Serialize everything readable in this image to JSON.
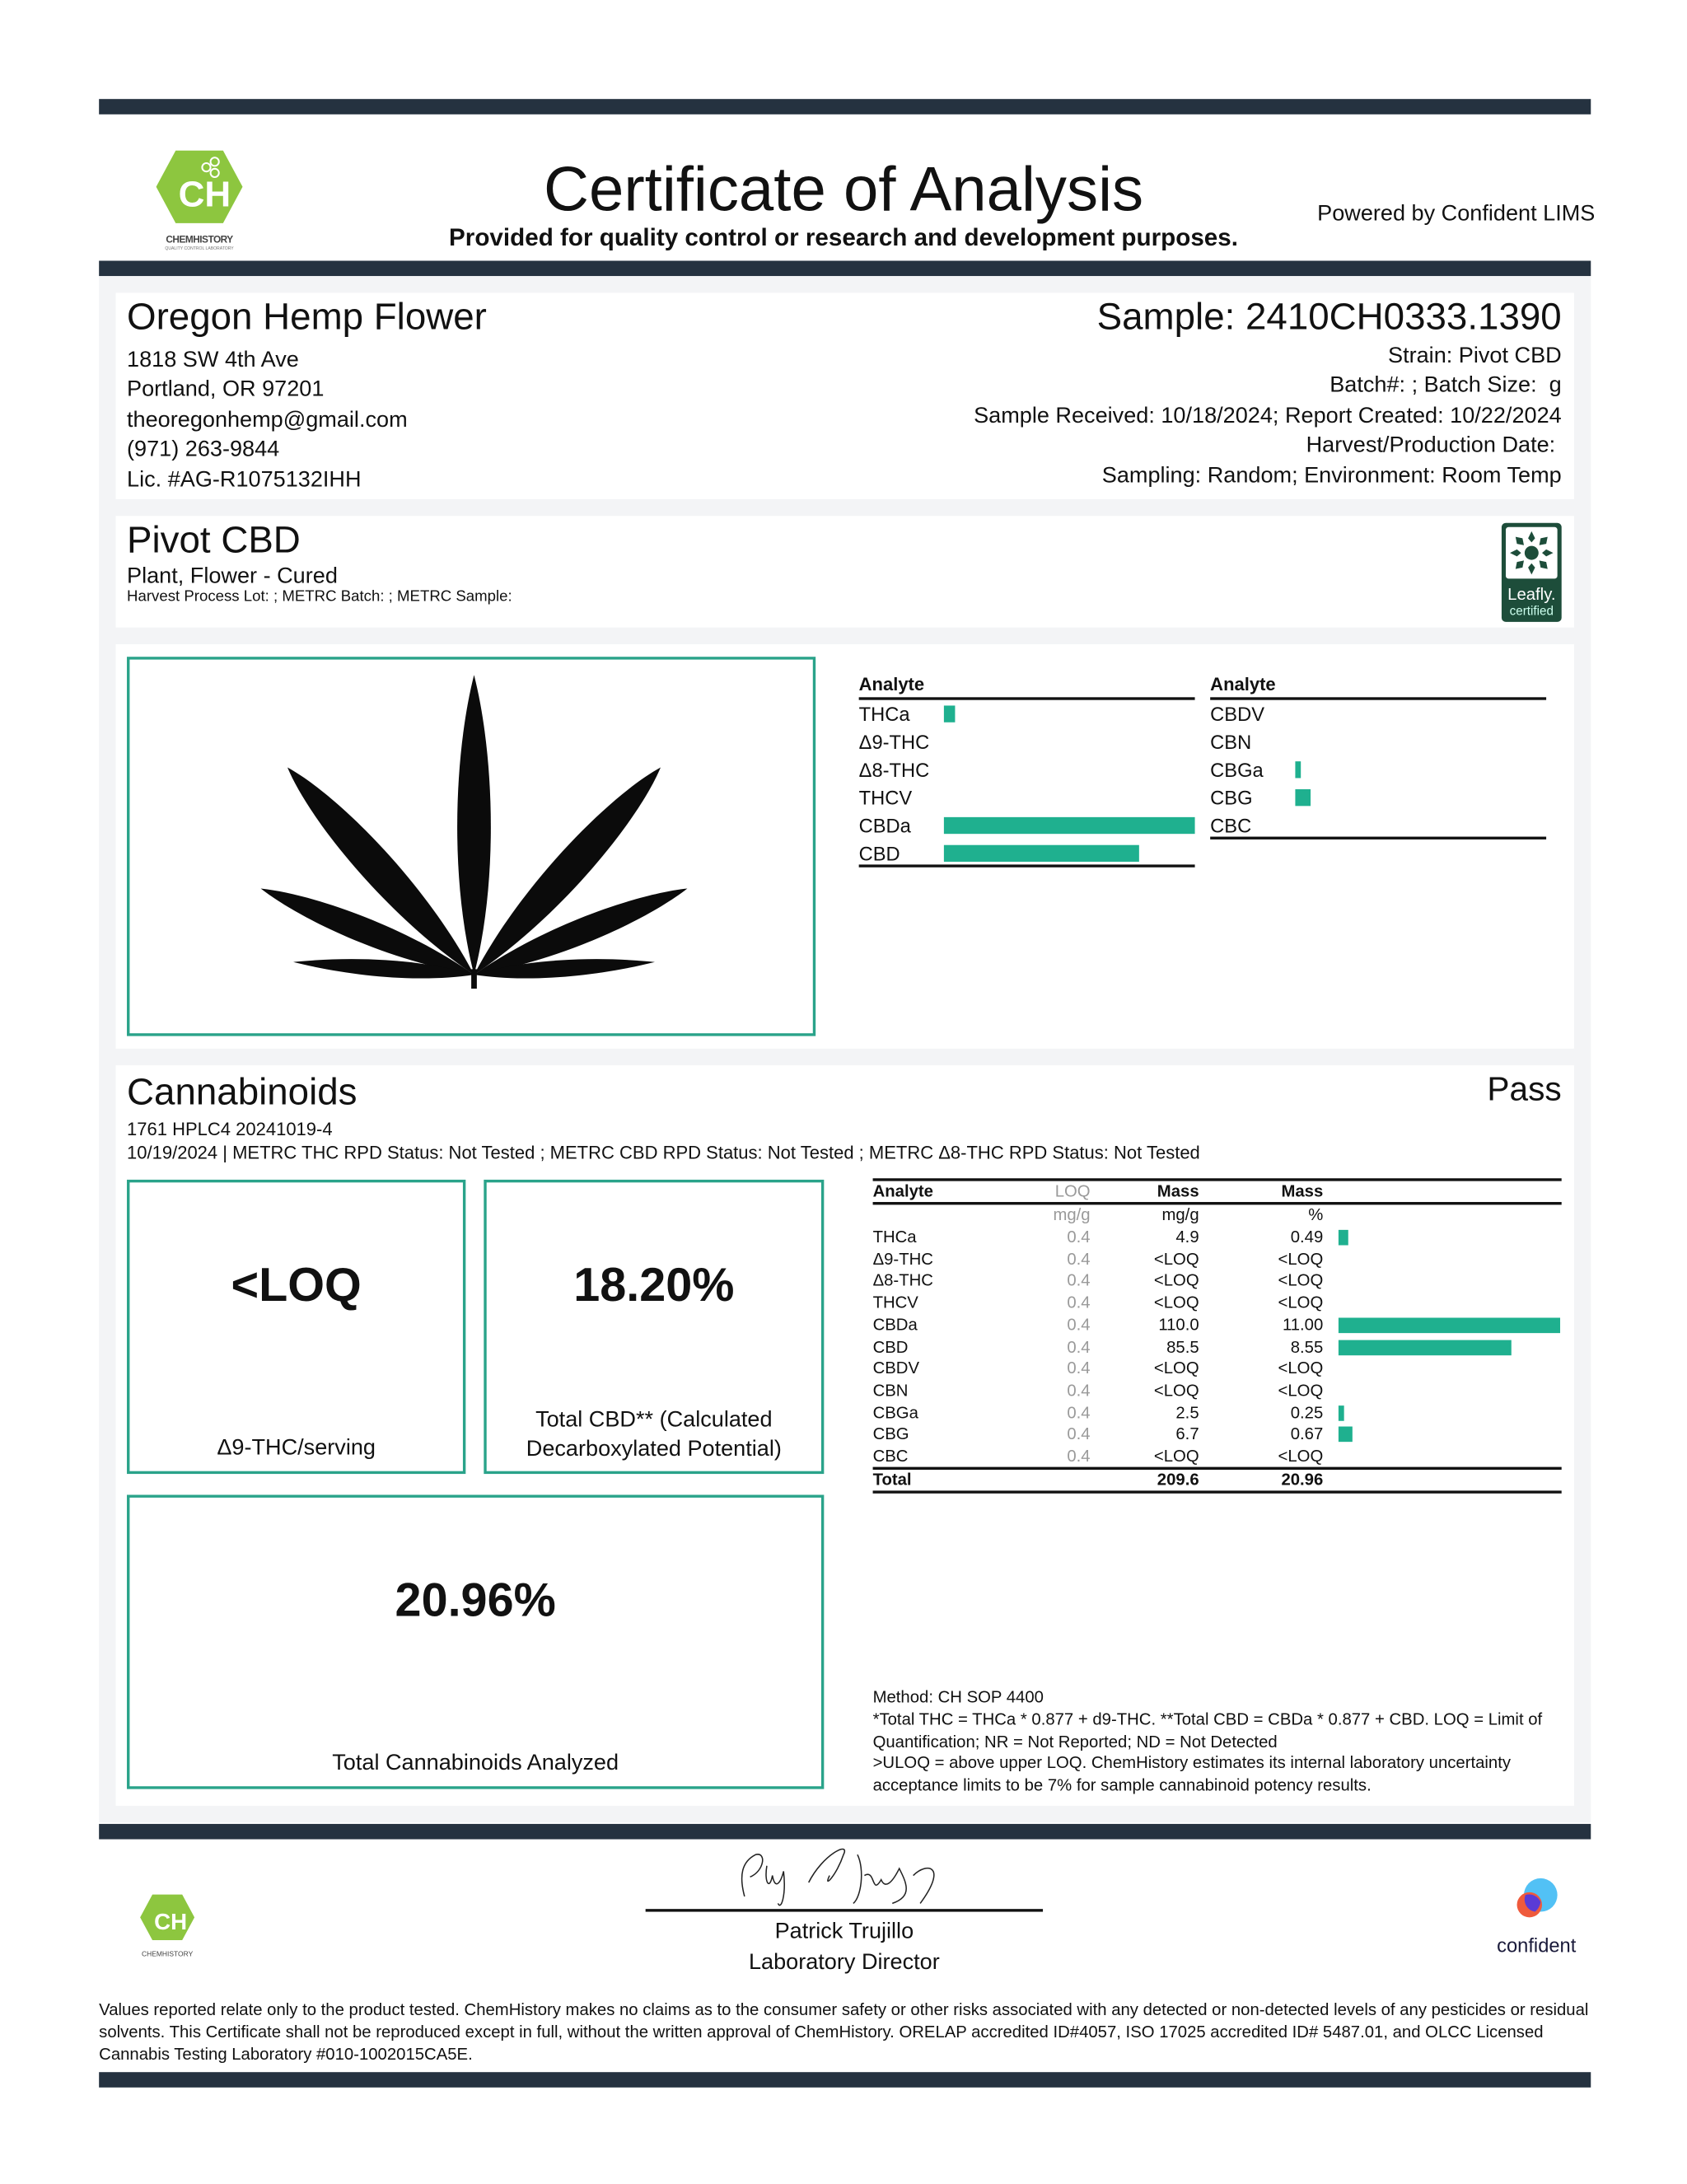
{
  "header": {
    "title": "Certificate of Analysis",
    "subtitle": "Provided for quality control or research and development purposes.",
    "powered_by": "Powered by Confident LIMS",
    "logo_text": "CHEMHISTORY",
    "logo_tagline": "QUALITY CONTROL LABORATORY",
    "logo_letters": "CH"
  },
  "client": {
    "name": "Oregon Hemp Flower",
    "address1": "1818 SW 4th Ave",
    "address2": "Portland, OR 97201",
    "email": "theoregonhemp@gmail.com",
    "phone": "(971) 263-9844",
    "license": "Lic. #AG-R1075132IHH"
  },
  "sample": {
    "id": "Sample: 2410CH0333.1390",
    "strain": "Strain: Pivot CBD",
    "batch": "Batch#: ; Batch Size:  g",
    "dates": "Sample Received: 10/18/2024; Report Created: 10/22/2024",
    "harvest": "Harvest/Production Date: ",
    "sampling": "Sampling: Random; Environment: Room Temp"
  },
  "product": {
    "name": "Pivot CBD",
    "type": "Plant, Flower - Cured",
    "lots": "Harvest Process Lot: ; METRC Batch: ; METRC Sample:",
    "badge": "Leafly.",
    "badge_sub": "certified"
  },
  "overview_chart": {
    "header": "Analyte",
    "max_pct": 11.0,
    "left": [
      {
        "name": "THCa",
        "pct": 0.49
      },
      {
        "name": "Δ9-THC",
        "pct": 0
      },
      {
        "name": "Δ8-THC",
        "pct": 0
      },
      {
        "name": "THCV",
        "pct": 0
      },
      {
        "name": "CBDa",
        "pct": 11.0
      },
      {
        "name": "CBD",
        "pct": 8.55
      }
    ],
    "right": [
      {
        "name": "CBDV",
        "pct": 0
      },
      {
        "name": "CBN",
        "pct": 0
      },
      {
        "name": "CBGa",
        "pct": 0.25
      },
      {
        "name": "CBG",
        "pct": 0.67
      },
      {
        "name": "CBC",
        "pct": 0
      }
    ]
  },
  "cannabinoids": {
    "title": "Cannabinoids",
    "status": "Pass",
    "instrument": "1761 HPLC4 20241019-4",
    "rpd": "10/19/2024 | METRC THC RPD Status: Not Tested ; METRC CBD RPD Status: Not Tested ; METRC Δ8-THC RPD Status: Not Tested",
    "stat1": {
      "value": "<LOQ",
      "label": "Δ9-THC/serving"
    },
    "stat2": {
      "value": "18.20%",
      "label": "Total CBD** (Calculated Decarboxylated Potential)"
    },
    "stat3": {
      "value": "20.96%",
      "label": "Total Cannabinoids Analyzed"
    },
    "table": {
      "headers": [
        "Analyte",
        "LOQ",
        "Mass",
        "Mass"
      ],
      "units": [
        "",
        "mg/g",
        "mg/g",
        "%"
      ],
      "rows": [
        {
          "analyte": "THCa",
          "loq": "0.4",
          "mg": "4.9",
          "pct": "0.49",
          "value": 0.49
        },
        {
          "analyte": "Δ9-THC",
          "loq": "0.4",
          "mg": "<LOQ",
          "pct": "<LOQ",
          "value": 0
        },
        {
          "analyte": "Δ8-THC",
          "loq": "0.4",
          "mg": "<LOQ",
          "pct": "<LOQ",
          "value": 0
        },
        {
          "analyte": "THCV",
          "loq": "0.4",
          "mg": "<LOQ",
          "pct": "<LOQ",
          "value": 0
        },
        {
          "analyte": "CBDa",
          "loq": "0.4",
          "mg": "110.0",
          "pct": "11.00",
          "value": 11.0
        },
        {
          "analyte": "CBD",
          "loq": "0.4",
          "mg": "85.5",
          "pct": "8.55",
          "value": 8.55
        },
        {
          "analyte": "CBDV",
          "loq": "0.4",
          "mg": "<LOQ",
          "pct": "<LOQ",
          "value": 0
        },
        {
          "analyte": "CBN",
          "loq": "0.4",
          "mg": "<LOQ",
          "pct": "<LOQ",
          "value": 0
        },
        {
          "analyte": "CBGa",
          "loq": "0.4",
          "mg": "2.5",
          "pct": "0.25",
          "value": 0.25
        },
        {
          "analyte": "CBG",
          "loq": "0.4",
          "mg": "6.7",
          "pct": "0.67",
          "value": 0.67
        },
        {
          "analyte": "CBC",
          "loq": "0.4",
          "mg": "<LOQ",
          "pct": "<LOQ",
          "value": 0
        }
      ],
      "total": {
        "label": "Total",
        "mg": "209.6",
        "pct": "20.96"
      }
    },
    "method": "Method: CH SOP 4400",
    "notes": "*Total THC = THCa * 0.877 + d9-THC. **Total CBD = CBDa * 0.877 + CBD. LOQ = Limit of Quantification; NR = Not Reported; ND = Not Detected\n>ULOQ = above upper LOQ. ChemHistory estimates its internal laboratory uncertainty acceptance limits to be 7% for sample cannabinoid potency results."
  },
  "footer": {
    "signer": "Patrick Trujillo",
    "role": "Laboratory Director",
    "confident": "confident",
    "disclaimer": "Values reported relate only to the product tested. ChemHistory makes no claims as to the consumer safety or other risks associated with any detected or non-detected levels of any pesticides or residual solvents. This Certificate shall not be reproduced except in full, without the written approval of ChemHistory.  ORELAP accredited ID#4057, ISO 17025 accredited ID# 5487.01, and OLCC Licensed Cannabis Testing Laboratory #010-1002015CA5E."
  },
  "colors": {
    "bar": "#253240",
    "accent": "#1fb08f",
    "logo_green": "#8dc63f",
    "leafly": "#1d4d3a"
  }
}
